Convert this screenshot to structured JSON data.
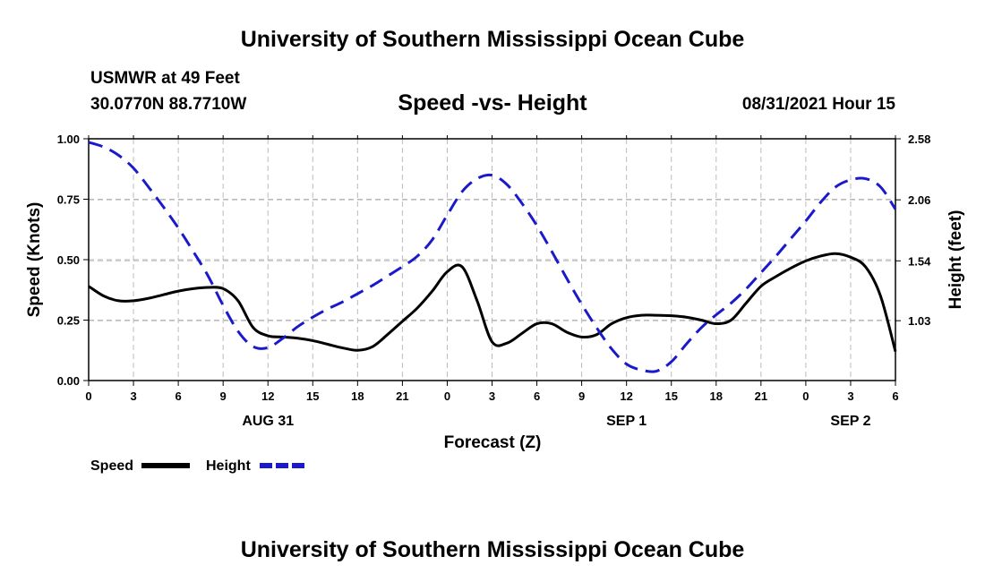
{
  "header": {
    "title": "University of Southern Mississippi Ocean Cube",
    "station": "USMWR at 49 Feet",
    "coords": "30.0770N  88.7710W",
    "subtitle": "Speed -vs- Height",
    "date": "08/31/2021 Hour 15"
  },
  "footer": {
    "title": "University of Southern Mississippi Ocean Cube"
  },
  "colors": {
    "speed": "#000000",
    "height": "#1a1acc",
    "grid": "#bbbbbb"
  },
  "chart_data": {
    "type": "line",
    "xlabel": "Forecast (Z)",
    "ylabel_left": "Speed (Knots)",
    "ylabel_right": "Height (feet)",
    "x_range": [
      0,
      54
    ],
    "x_ticks": [
      0,
      3,
      6,
      9,
      12,
      15,
      18,
      21,
      24,
      27,
      30,
      33,
      36,
      39,
      42,
      45,
      48,
      51,
      54
    ],
    "x_tick_labels": [
      "0",
      "3",
      "6",
      "9",
      "12",
      "15",
      "18",
      "21",
      "0",
      "3",
      "6",
      "9",
      "12",
      "15",
      "18",
      "21",
      "0",
      "3",
      "6"
    ],
    "date_labels": [
      {
        "x": 12,
        "label": "AUG 31"
      },
      {
        "x": 36,
        "label": "SEP 1"
      },
      {
        "x": 51,
        "label": "SEP 2"
      }
    ],
    "y_left_range": [
      0,
      1
    ],
    "y_left_ticks": [
      0,
      0.25,
      0.5,
      0.75,
      1.0
    ],
    "y_left_tick_labels": [
      "0.00",
      "0.25",
      "0.50",
      "0.75",
      "1.00"
    ],
    "y_right_range": [
      0.52,
      2.58
    ],
    "y_right_ticks": [
      1.03,
      1.54,
      2.06,
      2.58
    ],
    "y_right_tick_labels": [
      "1.03",
      "1.54",
      "2.06",
      "2.58"
    ],
    "grid": true,
    "series": [
      {
        "name": "Speed",
        "axis": "left",
        "style": "solid",
        "x": [
          0,
          1,
          2,
          3,
          4,
          5,
          6,
          7,
          8,
          9,
          10,
          11,
          12,
          13,
          14,
          15,
          16,
          17,
          18,
          19,
          20,
          21,
          22,
          23,
          24,
          25,
          26,
          27,
          28,
          29,
          30,
          31,
          32,
          33,
          34,
          35,
          36,
          37,
          38,
          39,
          40,
          41,
          42,
          43,
          44,
          45,
          46,
          47,
          48,
          49,
          50,
          51,
          52,
          53,
          54
        ],
        "values": [
          0.39,
          0.35,
          0.33,
          0.33,
          0.34,
          0.355,
          0.37,
          0.38,
          0.385,
          0.38,
          0.33,
          0.22,
          0.185,
          0.18,
          0.175,
          0.165,
          0.15,
          0.135,
          0.125,
          0.14,
          0.19,
          0.245,
          0.3,
          0.37,
          0.45,
          0.47,
          0.33,
          0.16,
          0.155,
          0.195,
          0.235,
          0.235,
          0.2,
          0.18,
          0.19,
          0.235,
          0.26,
          0.27,
          0.27,
          0.268,
          0.262,
          0.25,
          0.235,
          0.25,
          0.32,
          0.39,
          0.43,
          0.465,
          0.495,
          0.515,
          0.525,
          0.51,
          0.47,
          0.35,
          0.12
        ]
      },
      {
        "name": "Height",
        "axis": "right",
        "style": "dashed",
        "x": [
          0,
          1,
          2,
          3,
          4,
          5,
          6,
          7,
          8,
          9,
          10,
          11,
          12,
          13,
          14,
          15,
          16,
          17,
          18,
          19,
          20,
          21,
          22,
          23,
          24,
          25,
          26,
          27,
          28,
          29,
          30,
          31,
          32,
          33,
          34,
          35,
          36,
          37,
          38,
          39,
          40,
          41,
          42,
          43,
          44,
          45,
          46,
          47,
          48,
          49,
          50,
          51,
          52,
          53,
          54
        ],
        "values": [
          2.55,
          2.51,
          2.44,
          2.33,
          2.17,
          2.0,
          1.82,
          1.62,
          1.41,
          1.16,
          0.94,
          0.81,
          0.8,
          0.88,
          0.98,
          1.06,
          1.13,
          1.19,
          1.26,
          1.33,
          1.41,
          1.49,
          1.58,
          1.72,
          1.93,
          2.13,
          2.24,
          2.27,
          2.19,
          2.03,
          1.84,
          1.62,
          1.39,
          1.17,
          0.97,
          0.79,
          0.66,
          0.61,
          0.6,
          0.68,
          0.83,
          0.97,
          1.08,
          1.18,
          1.3,
          1.44,
          1.58,
          1.73,
          1.88,
          2.04,
          2.17,
          2.23,
          2.24,
          2.17,
          1.98
        ]
      }
    ],
    "legend": [
      {
        "name": "Speed",
        "style": "solid"
      },
      {
        "name": "Height",
        "style": "dashed"
      }
    ]
  }
}
